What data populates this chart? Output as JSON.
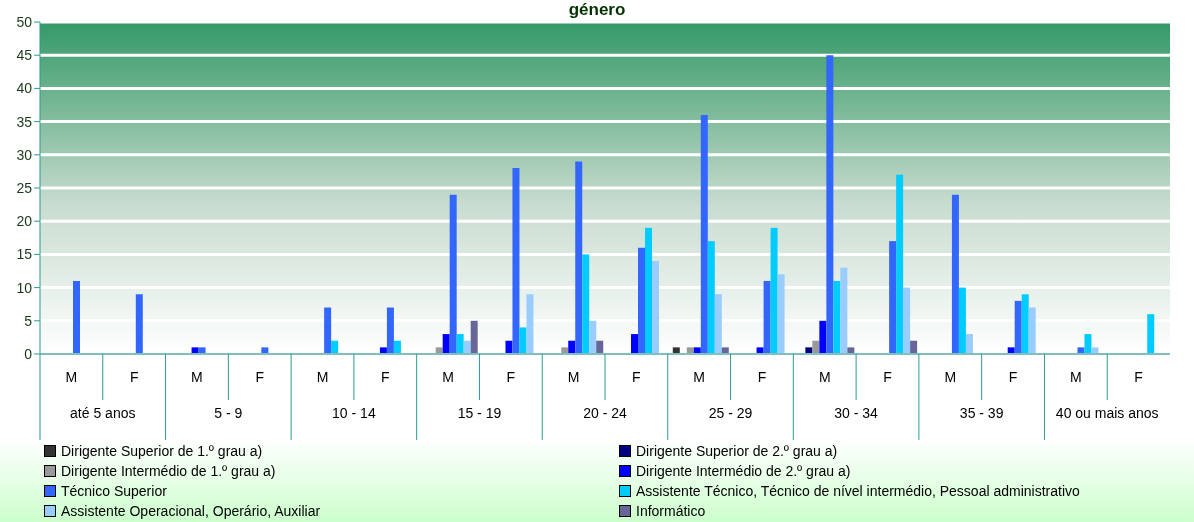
{
  "chart_data": {
    "type": "bar",
    "title": "género",
    "categories": [
      "M",
      "F",
      "M",
      "F",
      "M",
      "F",
      "M",
      "F",
      "M",
      "F",
      "M",
      "F",
      "M",
      "F",
      "M",
      "F",
      "M",
      "F"
    ],
    "annotations": [
      "até 5 anos",
      "5 - 9",
      "10 - 14",
      "15 - 19",
      "20 - 24",
      "25 - 29",
      "30 - 34",
      "35 - 39",
      "40 ou mais anos"
    ],
    "series": [
      {
        "name": "Dirigente Superior de 1.º grau a)",
        "color": "#333333",
        "values": [
          null,
          null,
          null,
          null,
          null,
          null,
          null,
          null,
          null,
          null,
          1,
          null,
          null,
          null,
          null,
          null,
          null,
          null
        ]
      },
      {
        "name": "Dirigente Superior de 2.º grau a)",
        "color": "#000080",
        "values": [
          null,
          null,
          null,
          null,
          null,
          null,
          null,
          null,
          null,
          null,
          null,
          null,
          1,
          null,
          null,
          null,
          null,
          null
        ]
      },
      {
        "name": "Dirigente Intermédio de 1.º grau a)",
        "color": "#999999",
        "values": [
          null,
          null,
          null,
          null,
          null,
          null,
          1,
          null,
          1,
          null,
          1,
          null,
          2,
          null,
          null,
          null,
          null,
          null
        ]
      },
      {
        "name": "Dirigente Intermédio de 2.º grau a)",
        "color": "#0000ff",
        "values": [
          null,
          null,
          1,
          null,
          null,
          1,
          3,
          2,
          2,
          3,
          1,
          1,
          5,
          null,
          null,
          1,
          null,
          null
        ]
      },
      {
        "name": "Técnico Superior",
        "color": "#3366ff",
        "values": [
          11,
          9,
          1,
          1,
          7,
          7,
          24,
          28,
          29,
          16,
          36,
          11,
          45,
          17,
          24,
          8,
          1,
          null
        ]
      },
      {
        "name": "Assistente Técnico, Técnico de nível intermédio, Pessoal administrativo",
        "color": "#00ccff",
        "values": [
          null,
          null,
          null,
          null,
          2,
          2,
          3,
          4,
          15,
          19,
          17,
          19,
          11,
          27,
          10,
          9,
          3,
          6
        ]
      },
      {
        "name": "Assistente Operacional, Operário, Auxiliar",
        "color": "#99ccff",
        "values": [
          null,
          null,
          null,
          null,
          null,
          null,
          2,
          9,
          5,
          14,
          9,
          12,
          13,
          10,
          3,
          7,
          1,
          null
        ]
      },
      {
        "name": "Informático",
        "color": "#666699",
        "values": [
          null,
          null,
          null,
          null,
          null,
          null,
          5,
          null,
          2,
          null,
          1,
          null,
          1,
          2,
          null,
          null,
          null,
          null
        ]
      }
    ],
    "ylim": [
      0,
      50
    ],
    "yticks": [
      0,
      5,
      10,
      15,
      20,
      25,
      30,
      35,
      40,
      45,
      50
    ],
    "grid": "y",
    "legend": "bottom"
  }
}
